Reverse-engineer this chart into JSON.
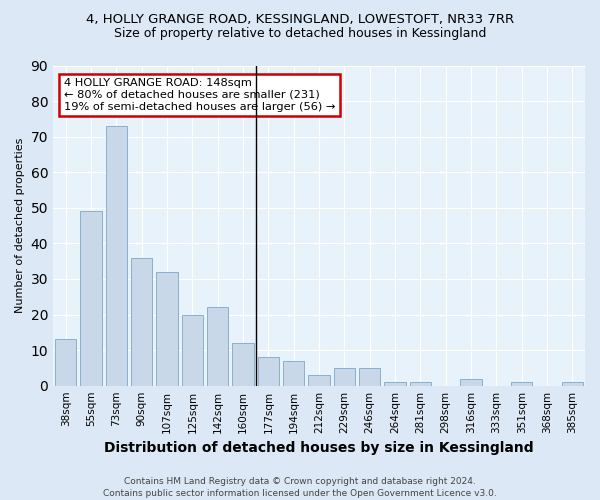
{
  "title": "4, HOLLY GRANGE ROAD, KESSINGLAND, LOWESTOFT, NR33 7RR",
  "subtitle": "Size of property relative to detached houses in Kessingland",
  "xlabel": "Distribution of detached houses by size in Kessingland",
  "ylabel": "Number of detached properties",
  "categories": [
    "38sqm",
    "55sqm",
    "73sqm",
    "90sqm",
    "107sqm",
    "125sqm",
    "142sqm",
    "160sqm",
    "177sqm",
    "194sqm",
    "212sqm",
    "229sqm",
    "246sqm",
    "264sqm",
    "281sqm",
    "298sqm",
    "316sqm",
    "333sqm",
    "351sqm",
    "368sqm",
    "385sqm"
  ],
  "values": [
    13,
    49,
    73,
    36,
    32,
    20,
    22,
    12,
    8,
    7,
    3,
    5,
    5,
    1,
    1,
    0,
    2,
    0,
    1,
    0,
    1
  ],
  "bar_color": "#c8d8e8",
  "bar_edge_color": "#8ab0cc",
  "annotation_text": "4 HOLLY GRANGE ROAD: 148sqm\n← 80% of detached houses are smaller (231)\n19% of semi-detached houses are larger (56) →",
  "annotation_box_color": "#ffffff",
  "annotation_box_edge": "#cc0000",
  "ylim": [
    0,
    90
  ],
  "yticks": [
    0,
    10,
    20,
    30,
    40,
    50,
    60,
    70,
    80,
    90
  ],
  "footer": "Contains HM Land Registry data © Crown copyright and database right 2024.\nContains public sector information licensed under the Open Government Licence v3.0.",
  "bg_color": "#dce8f5",
  "plot_bg_color": "#e8f2fb",
  "title_fontsize": 9.5,
  "subtitle_fontsize": 9,
  "ylabel_fontsize": 8,
  "xlabel_fontsize": 10
}
